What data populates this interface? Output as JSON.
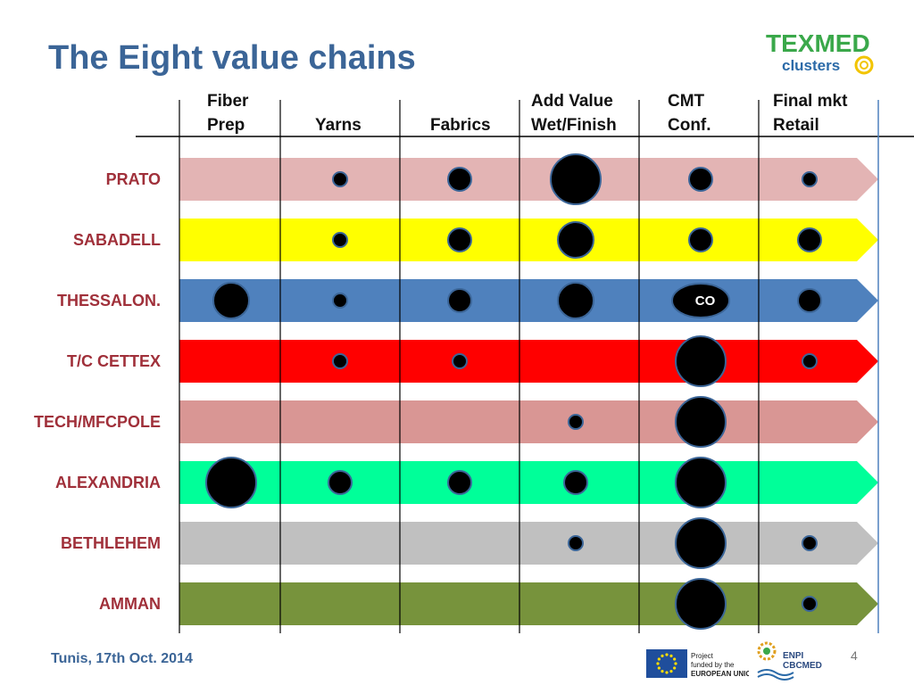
{
  "title": "The Eight value chains",
  "columns": [
    {
      "line1": "Fiber",
      "line2": "Prep"
    },
    {
      "line1": "",
      "line2": "Yarns"
    },
    {
      "line1": "",
      "line2": "Fabrics"
    },
    {
      "line1": "Add Value",
      "line2": "Wet/Finish"
    },
    {
      "line1": "CMT",
      "line2": "Conf."
    },
    {
      "line1": "Final mkt",
      "line2": "Retail"
    }
  ],
  "rows": [
    {
      "label": "PRATO",
      "color": "#e3b4b4",
      "dots": [
        0,
        1,
        2,
        4,
        2,
        1
      ]
    },
    {
      "label": "SABADELL",
      "color": "#ffff00",
      "dots": [
        0,
        1,
        2,
        3,
        2,
        2
      ]
    },
    {
      "label": "THESSALON.",
      "color": "#4f81bd",
      "dots": [
        3,
        1,
        2,
        3,
        5,
        2
      ]
    },
    {
      "label": "T/C CETTEX",
      "color": "#ff0000",
      "dots": [
        0,
        1,
        1,
        0,
        4,
        1
      ]
    },
    {
      "label": "TECH/MFCPOLE",
      "color": "#d99694",
      "dots": [
        0,
        0,
        0,
        1,
        4,
        0
      ]
    },
    {
      "label": "ALEXANDRIA",
      "color": "#00ff99",
      "dots": [
        4,
        2,
        2,
        2,
        4,
        0
      ]
    },
    {
      "label": "BETHLEHEM",
      "color": "#c0c0c0",
      "dots": [
        0,
        0,
        0,
        1,
        4,
        1
      ]
    },
    {
      "label": "AMMAN",
      "color": "#77933c",
      "dots": [
        0,
        0,
        0,
        0,
        4,
        1
      ]
    }
  ],
  "dot_legend": {
    "5": "CO"
  },
  "logo": {
    "text_top": "TEXMED",
    "text_bottom": "clusters"
  },
  "footer": {
    "date": "Tunis, 17th Oct. 2014",
    "page": "4",
    "eu_text": [
      "Project",
      "funded by the",
      "EUROPEAN UNION"
    ],
    "enpi_text": [
      "ENPI",
      "CBCMED"
    ]
  },
  "colors": {
    "title": "#3b6597",
    "label": "#a0303a",
    "dot": "#000000",
    "dot_stroke": "#3b6597"
  }
}
